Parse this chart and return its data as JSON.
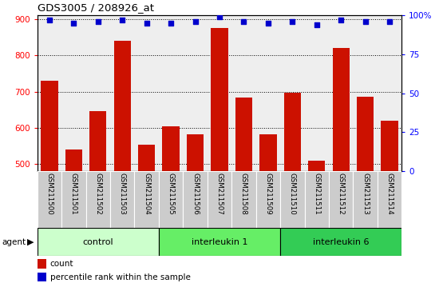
{
  "title": "GDS3005 / 208926_at",
  "samples": [
    "GSM211500",
    "GSM211501",
    "GSM211502",
    "GSM211503",
    "GSM211504",
    "GSM211505",
    "GSM211506",
    "GSM211507",
    "GSM211508",
    "GSM211509",
    "GSM211510",
    "GSM211511",
    "GSM211512",
    "GSM211513",
    "GSM211514"
  ],
  "counts": [
    730,
    540,
    645,
    840,
    553,
    605,
    583,
    875,
    683,
    582,
    697,
    510,
    820,
    685,
    620
  ],
  "percentile_ranks": [
    97,
    95,
    96,
    97,
    95,
    95,
    96,
    99,
    96,
    95,
    96,
    94,
    97,
    96,
    96
  ],
  "groups": [
    {
      "label": "control",
      "start": 0,
      "end": 5,
      "color": "#ccffcc"
    },
    {
      "label": "interleukin 1",
      "start": 5,
      "end": 10,
      "color": "#66ee66"
    },
    {
      "label": "interleukin 6",
      "start": 10,
      "end": 15,
      "color": "#33cc55"
    }
  ],
  "ylim_left": [
    480,
    910
  ],
  "ylim_right": [
    0,
    100
  ],
  "yticks_left": [
    500,
    600,
    700,
    800,
    900
  ],
  "yticks_right": [
    0,
    25,
    50,
    75,
    100
  ],
  "bar_color": "#cc1100",
  "dot_color": "#0000cc",
  "bg_color": "#eeeeee",
  "agent_label": "agent",
  "legend_count": "count",
  "legend_percentile": "percentile rank within the sample"
}
